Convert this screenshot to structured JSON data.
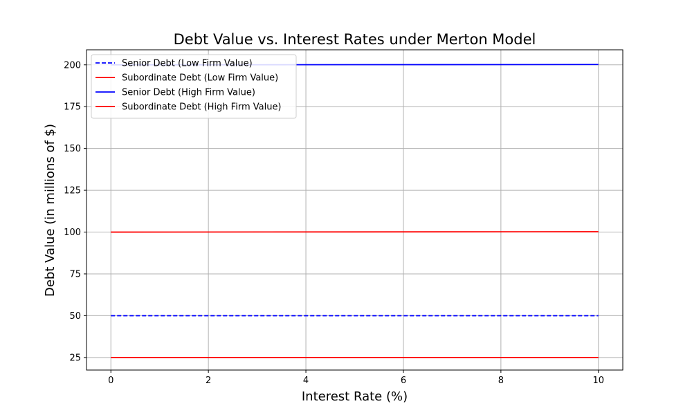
{
  "chart_data": {
    "type": "line",
    "title": "Debt Value vs. Interest Rates under Merton Model",
    "xlabel": "Interest Rate (%)",
    "ylabel": "Debt Value (in millions of $)",
    "xlim": [
      -0.5,
      10.5
    ],
    "ylim": [
      17.5,
      209
    ],
    "x_ticks": [
      0,
      2,
      4,
      6,
      8,
      10
    ],
    "x_tick_labels": [
      "0",
      "2",
      "4",
      "6",
      "8",
      "10"
    ],
    "y_ticks": [
      25,
      50,
      75,
      100,
      125,
      150,
      175,
      200
    ],
    "y_tick_labels": [
      "25",
      "50",
      "75",
      "100",
      "125",
      "150",
      "175",
      "200"
    ],
    "grid": true,
    "legend_position": "top-left",
    "series": [
      {
        "name": "Senior Debt (Low Firm Value)",
        "color": "#0000ff",
        "dash": "dashed",
        "x": [
          0,
          10
        ],
        "y": [
          50,
          50
        ]
      },
      {
        "name": "Subordinate Debt (Low Firm Value)",
        "color": "#ff0000",
        "dash": "solid",
        "x": [
          0,
          10
        ],
        "y": [
          25,
          25
        ]
      },
      {
        "name": "Senior Debt (High Firm Value)",
        "color": "#0000ff",
        "dash": "solid",
        "x": [
          0,
          10
        ],
        "y": [
          200,
          200.2
        ]
      },
      {
        "name": "Subordinate Debt (High Firm Value)",
        "color": "#ff0000",
        "dash": "solid",
        "x": [
          0,
          10
        ],
        "y": [
          100,
          100.2
        ]
      }
    ]
  }
}
